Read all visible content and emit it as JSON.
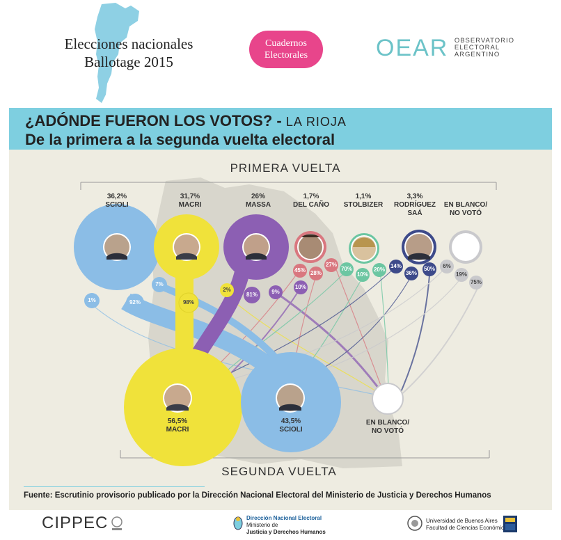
{
  "header": {
    "title_line1": "Elecciones nacionales",
    "title_line2": "Ballotage 2015",
    "pill_line1": "Cuadernos",
    "pill_line2": "Electorales",
    "oear_letters": "OEAR",
    "oear_line1": "OBSERVATORIO",
    "oear_line2": "ELECTORAL",
    "oear_line3": "ARGENTINO"
  },
  "banner": {
    "line1_main": "¿ADÓNDE FUERON LOS VOTOS? - ",
    "line1_sub": "LA RIOJA",
    "line2": "De la primera a la segunda vuelta electoral"
  },
  "diagram": {
    "first_round_label": "PRIMERA VUELTA",
    "second_round_label": "SEGUNDA VUELTA",
    "first_round": [
      {
        "pct": "36,2%",
        "name": "SCIOLI",
        "color": "#8bbde6",
        "transfers": [
          "1%",
          "92%",
          "7%"
        ]
      },
      {
        "pct": "31,7%",
        "name": "MACRI",
        "color": "#f0e23a",
        "transfers": [
          "2%",
          "98%"
        ]
      },
      {
        "pct": "26%",
        "name": "MASSA",
        "color": "#8c5fb3",
        "transfers": [
          "81%",
          "9%",
          "10%"
        ]
      },
      {
        "pct": "1,7%",
        "name": "DEL CAÑO",
        "color": "#d9777f",
        "transfers": [
          "45%",
          "28%",
          "27%"
        ]
      },
      {
        "pct": "1,1%",
        "name": "STOLBIZER",
        "color": "#6cc6a2",
        "transfers": [
          "70%",
          "10%",
          "20%"
        ]
      },
      {
        "pct": "3,3%",
        "name_line1": "RODRÍGUEZ",
        "name_line2": "SAÁ",
        "color": "#3d4a8a",
        "transfers": [
          "14%",
          "36%",
          "50%"
        ]
      },
      {
        "name_line1": "EN BLANCO/",
        "name_line2": "NO VOTÓ",
        "color": "#c9c9cc",
        "transfers": [
          "6%",
          "19%",
          "75%"
        ]
      }
    ],
    "second_round": [
      {
        "pct": "56,5%",
        "name": "MACRI",
        "color": "#f0e23a"
      },
      {
        "pct": "43,5%",
        "name": "SCIOLI",
        "color": "#8bbde6"
      },
      {
        "name_line1": "EN BLANCO/",
        "name_line2": "NO VOTÓ",
        "color": "#ffffff"
      }
    ],
    "map_color": "#d8d6cc"
  },
  "footer": {
    "fuente": "Fuente: Escrutinio provisorio publicado por la Dirección Nacional Electoral del Ministerio de Justicia y Derechos Humanos",
    "cippec": "CIPPEC",
    "dne_line1": "Dirección Nacional Electoral",
    "dne_line2": "Ministerio de",
    "dne_line3": "Justicia y Derechos Humanos",
    "uba_line1": "Universidad de Buenos Aires",
    "uba_line2": "Facultad de Ciencias Económicas"
  }
}
